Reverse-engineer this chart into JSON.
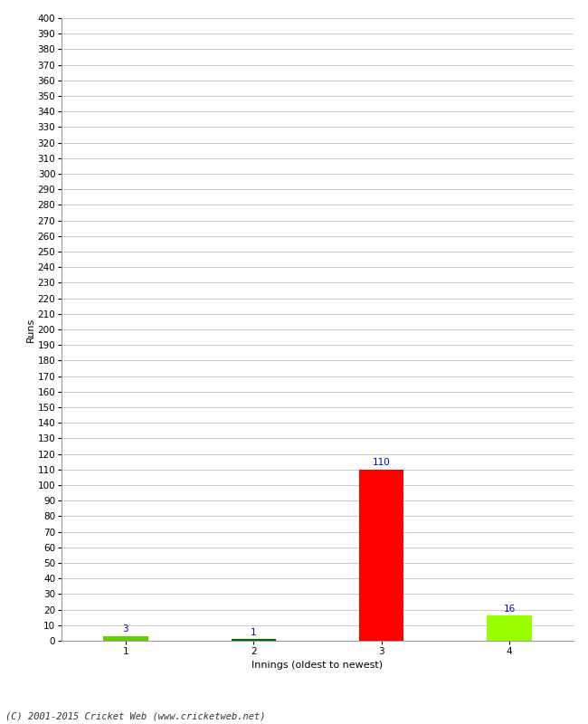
{
  "categories": [
    1,
    2,
    3,
    4
  ],
  "values": [
    3,
    1,
    110,
    16
  ],
  "bar_colors": [
    "#66cc00",
    "#006600",
    "#ff0000",
    "#99ff00"
  ],
  "value_labels": [
    3,
    1,
    110,
    16
  ],
  "value_label_color": "#0000cc",
  "xlabel": "Innings (oldest to newest)",
  "ylabel": "Runs",
  "ylim": [
    0,
    400
  ],
  "yticks": [
    0,
    10,
    20,
    30,
    40,
    50,
    60,
    70,
    80,
    90,
    100,
    110,
    120,
    130,
    140,
    150,
    160,
    170,
    180,
    190,
    200,
    210,
    220,
    230,
    240,
    250,
    260,
    270,
    280,
    290,
    300,
    310,
    320,
    330,
    340,
    350,
    360,
    370,
    380,
    390,
    400
  ],
  "background_color": "#ffffff",
  "grid_color": "#cccccc",
  "footer": "(C) 2001-2015 Cricket Web (www.cricketweb.net)",
  "value_fontsize": 7.5,
  "axis_label_fontsize": 8,
  "tick_fontsize": 7.5,
  "footer_fontsize": 7.5,
  "bar_width": 0.35
}
